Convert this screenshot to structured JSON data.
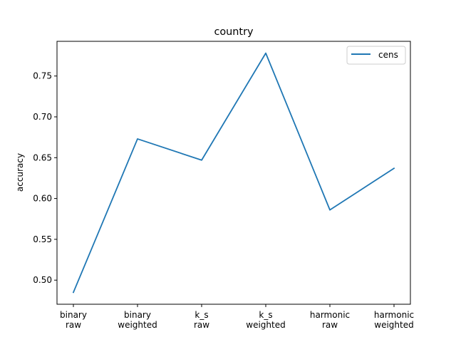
{
  "chart_data": {
    "type": "line",
    "title": "country",
    "xlabel": "",
    "ylabel": "accuracy",
    "categories": [
      "binary\nraw",
      "binary\nweighted",
      "k_s\nraw",
      "k_s\nweighted",
      "harmonic\nraw",
      "harmonic\nweighted"
    ],
    "series": [
      {
        "name": "cens",
        "color": "#1f77b4",
        "values": [
          0.485,
          0.673,
          0.647,
          0.778,
          0.586,
          0.637
        ]
      }
    ],
    "ylim": [
      0.4705,
      0.7925
    ],
    "yticks": [
      0.5,
      0.55,
      0.6,
      0.65,
      0.7,
      0.75
    ],
    "ytick_labels": [
      "0.50",
      "0.55",
      "0.60",
      "0.65",
      "0.70",
      "0.75"
    ],
    "grid": false,
    "legend_position": "top-right"
  }
}
